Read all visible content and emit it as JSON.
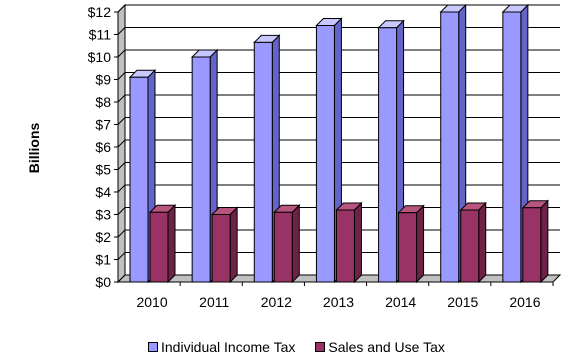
{
  "chart_data": {
    "type": "bar",
    "categories": [
      "2010",
      "2011",
      "2012",
      "2013",
      "2014",
      "2015",
      "2016"
    ],
    "series": [
      {
        "name": "Individual Income Tax",
        "values": [
          9.1,
          10.0,
          10.65,
          11.4,
          11.3,
          12.0,
          12.0
        ]
      },
      {
        "name": "Sales and Use Tax",
        "values": [
          3.1,
          3.0,
          3.1,
          3.2,
          3.08,
          3.2,
          3.3
        ]
      }
    ],
    "ylabel": "Billions",
    "ylim": [
      0,
      12
    ],
    "yticks": [
      "$0",
      "$1",
      "$2",
      "$3",
      "$4",
      "$5",
      "$6",
      "$7",
      "$8",
      "$9",
      "$10",
      "$11",
      "$12"
    ],
    "grid": true,
    "legend": "bottom",
    "colors": {
      "income_front": "#9999FF",
      "income_side": "#6464C8",
      "income_top": "#C8C8FF",
      "sales_front": "#993366",
      "sales_side": "#6E2248",
      "sales_top": "#B8557F",
      "wall": "#C0C0C0"
    }
  }
}
